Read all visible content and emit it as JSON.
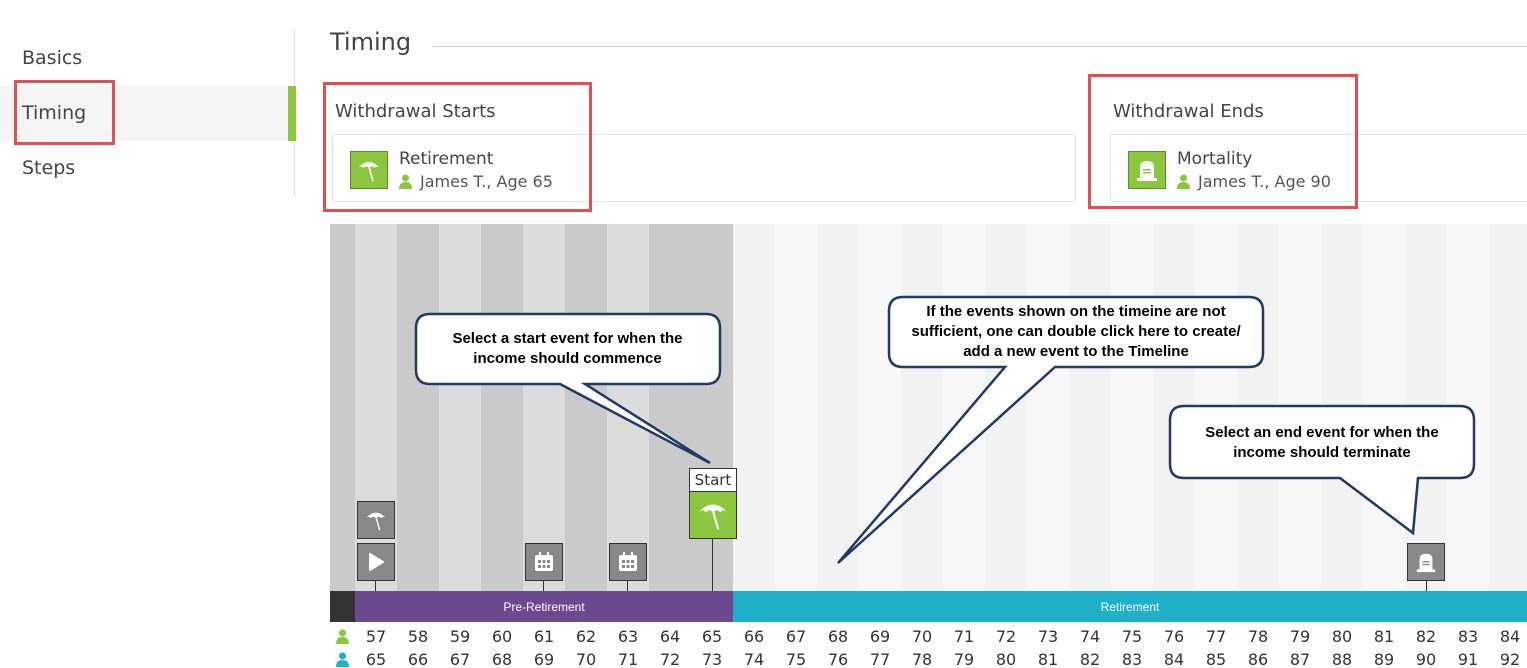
{
  "sidebar": {
    "items": [
      {
        "label": "Basics"
      },
      {
        "label": "Timing"
      },
      {
        "label": "Steps"
      }
    ]
  },
  "header": {
    "title": "Timing"
  },
  "withdrawal_starts": {
    "heading": "Withdrawal Starts",
    "event_name": "Retirement",
    "event_icon": "umbrella-icon",
    "person": "James T., Age 65"
  },
  "withdrawal_ends": {
    "heading": "Withdrawal Ends",
    "event_name": "Mortality",
    "event_icon": "tombstone-icon",
    "person": "James T., Age 90"
  },
  "timeline": {
    "phases": [
      {
        "label": "",
        "color": "#333333"
      },
      {
        "label": "Pre-Retirement",
        "color": "#6d4a8f"
      },
      {
        "label": "Retirement",
        "color": "#1fb0c9"
      }
    ],
    "ages_person1": [
      "57",
      "58",
      "59",
      "60",
      "61",
      "62",
      "63",
      "64",
      "65",
      "66",
      "67",
      "68",
      "69",
      "70",
      "71",
      "72",
      "73",
      "74",
      "75",
      "76",
      "77",
      "78",
      "79",
      "80",
      "81",
      "82",
      "83",
      "84"
    ],
    "ages_person2": [
      "65",
      "66",
      "67",
      "68",
      "69",
      "70",
      "71",
      "72",
      "73",
      "74",
      "75",
      "76",
      "77",
      "78",
      "79",
      "80",
      "81",
      "82",
      "83",
      "84",
      "85",
      "86",
      "87",
      "88",
      "89",
      "90",
      "91",
      "92"
    ],
    "start_label": "Start",
    "person1_color": "#8cc63f",
    "person2_color": "#1fb0c9"
  },
  "callouts": {
    "start": "Select a start event for when the income should commence",
    "add_event": "If the events shown on the timeine are not sufficient, one can double click here to create/ add a new event to the Timeline",
    "end": "Select an end event for when the income should terminate"
  },
  "colors": {
    "accent": "#8cc63f",
    "highlight": "#e05050",
    "callout_border": "#1f3a64"
  }
}
